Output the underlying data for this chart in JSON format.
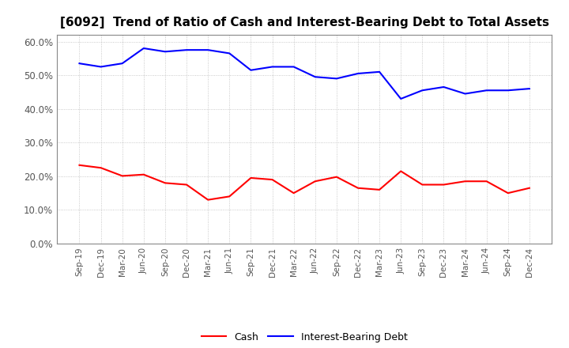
{
  "title": "[6092]  Trend of Ratio of Cash and Interest-Bearing Debt to Total Assets",
  "x_labels": [
    "Sep-19",
    "Dec-19",
    "Mar-20",
    "Jun-20",
    "Sep-20",
    "Dec-20",
    "Mar-21",
    "Jun-21",
    "Sep-21",
    "Dec-21",
    "Mar-22",
    "Jun-22",
    "Sep-22",
    "Dec-22",
    "Mar-23",
    "Jun-23",
    "Sep-23",
    "Dec-23",
    "Mar-24",
    "Jun-24",
    "Sep-24",
    "Dec-24"
  ],
  "cash": [
    23.3,
    22.5,
    20.1,
    20.5,
    18.0,
    17.5,
    13.0,
    14.0,
    19.5,
    19.0,
    15.0,
    18.5,
    19.8,
    16.5,
    16.0,
    21.5,
    17.5,
    17.5,
    18.5,
    18.5,
    15.0,
    16.5
  ],
  "interest_bearing_debt": [
    53.5,
    52.5,
    53.5,
    58.0,
    57.0,
    57.5,
    57.5,
    56.5,
    51.5,
    52.5,
    52.5,
    49.5,
    49.0,
    50.5,
    51.0,
    43.0,
    45.5,
    46.5,
    44.5,
    45.5,
    45.5,
    46.0
  ],
  "ylim": [
    0,
    62
  ],
  "yticks": [
    0.0,
    10.0,
    20.0,
    30.0,
    40.0,
    50.0,
    60.0
  ],
  "cash_color": "#ff0000",
  "debt_color": "#0000ff",
  "background_color": "#ffffff",
  "grid_color": "#aaaaaa",
  "title_fontsize": 11,
  "tick_label_color": "#555555",
  "legend_labels": [
    "Cash",
    "Interest-Bearing Debt"
  ]
}
